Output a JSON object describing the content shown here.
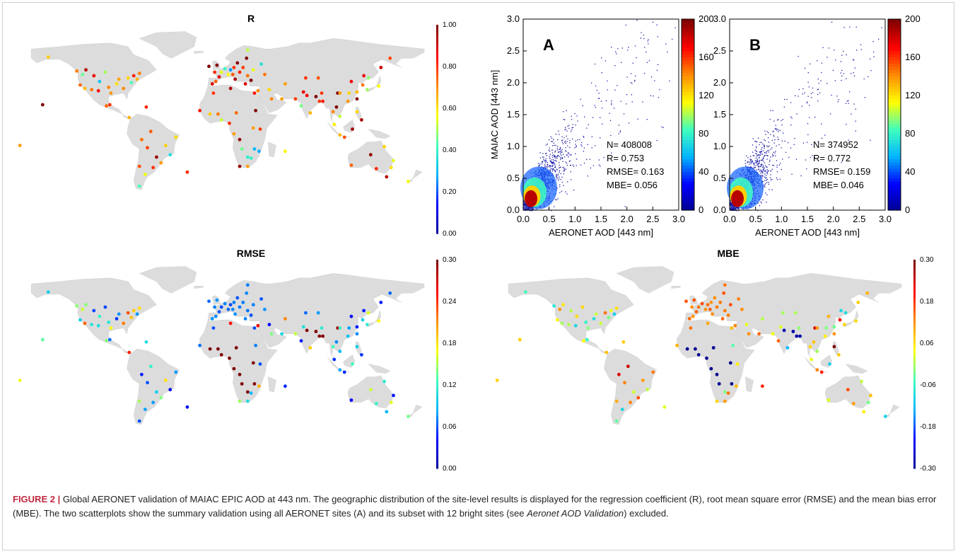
{
  "maps": [
    {
      "id": "R",
      "title": "R",
      "colorbar_ticks": [
        "1.00",
        "0.80",
        "0.60",
        "0.40",
        "0.20",
        "0.00"
      ]
    },
    {
      "id": "RMSE",
      "title": "RMSE",
      "colorbar_ticks": [
        "0.30",
        "0.24",
        "0.18",
        "0.12",
        "0.06",
        "0.00"
      ]
    },
    {
      "id": "MBE",
      "title": "MBE",
      "colorbar_ticks": [
        "0.30",
        "0.18",
        "0.06",
        "-0.06",
        "-0.18",
        "-0.30"
      ]
    }
  ],
  "chart_data": [
    {
      "type": "scatter",
      "panel": "A",
      "xlabel": "AERONET AOD [443 nm]",
      "ylabel": "MAIAC AOD [443 nm]",
      "xlim": [
        0,
        3
      ],
      "ylim": [
        0,
        3
      ],
      "xticks": [
        "0.0",
        "0.5",
        "1.0",
        "1.5",
        "2.0",
        "2.5",
        "3.0"
      ],
      "yticks": [
        "0.0",
        "0.5",
        "1.0",
        "1.5",
        "2.0",
        "2.5",
        "3.0"
      ],
      "density_colorbar_ticks": [
        "200",
        "160",
        "120",
        "80",
        "40",
        "0"
      ],
      "stats": {
        "N": "N= 408008",
        "R": "R= 0.753",
        "RMSE": "RMSE= 0.163",
        "MBE": "MBE= 0.056"
      }
    },
    {
      "type": "scatter",
      "panel": "B",
      "xlabel": "AERONET AOD [443 nm]",
      "ylabel": "",
      "xlim": [
        0,
        3
      ],
      "ylim": [
        0,
        3
      ],
      "xticks": [
        "0.0",
        "0.5",
        "1.0",
        "1.5",
        "2.0",
        "2.5",
        "3.0"
      ],
      "yticks": [
        "0.0",
        "0.5",
        "1.0",
        "1.5",
        "2.0",
        "2.5",
        "3.0"
      ],
      "density_colorbar_ticks": [
        "200",
        "160",
        "120",
        "80",
        "40",
        "0"
      ],
      "stats": {
        "N": "N= 374952",
        "R": "R= 0.772",
        "RMSE": "RMSE= 0.159",
        "MBE": "MBE= 0.046"
      }
    }
  ],
  "caption": {
    "label": "FIGURE 2 |",
    "text_before": " Global AERONET validation of MAIAC EPIC AOD at 443 nm. The geographic distribution of the site-level results is displayed for the regression coefficient (R), root mean square error (RMSE) and the mean bias error (MBE). The two scatterplots show the summary validation using all AERONET sites (A) and its subset with 12 bright sites (see ",
    "italic": "Aeronet AOD Validation",
    "text_after": ") excluded."
  },
  "colors": {
    "land": "#dcdcdc",
    "point_cloud": "#1a1aa8",
    "colormap": [
      "#00008f",
      "#0000ff",
      "#00b4ff",
      "#3fffbf",
      "#ffff00",
      "#ff8c00",
      "#ff0000",
      "#800000"
    ]
  }
}
